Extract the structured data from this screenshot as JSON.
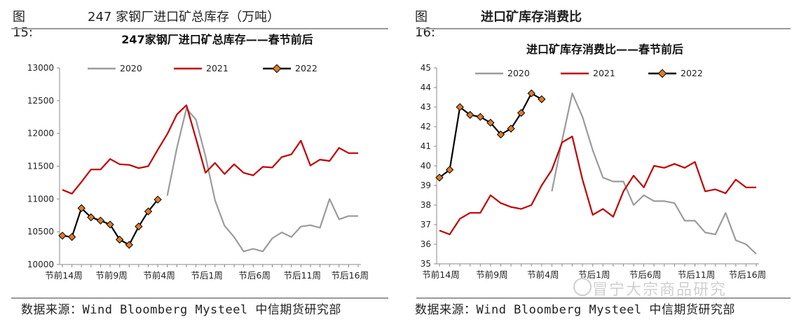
{
  "panels": [
    {
      "fig_num": "图 15:",
      "fig_title": "247 家钢厂进口矿总库存（万吨）",
      "source": "数据来源：Wind Bloomberg Mysteel 中信期货研究部"
    },
    {
      "fig_num": "图 16:",
      "fig_title": "进口矿库存消费比",
      "source": "数据来源：Wind Bloomberg Mysteel 中信期货研究部"
    }
  ],
  "watermark": "冒宁大宗商品研究",
  "colors": {
    "s2020": "#9b9b9b",
    "s2021": "#c00000",
    "s2022": "#000000",
    "marker": "#e07b28"
  },
  "chart_data": [
    {
      "type": "line",
      "title": "247家钢厂进口矿总库存——春节前后",
      "xlabel": "",
      "ylabel": "",
      "ylim": [
        10000,
        13000
      ],
      "yticks": [
        "13000",
        "12500",
        "12000",
        "11500",
        "11000",
        "10500",
        "10000"
      ],
      "xticks": [
        "节前14周",
        "节前9周",
        "节前4周",
        "节后1周",
        "节后6周",
        "节后11周",
        "节后16周"
      ],
      "x_count": 32,
      "legend": "top",
      "series": [
        {
          "name": "2020",
          "x_start": 11,
          "values": [
            11050,
            11780,
            12380,
            12210,
            11650,
            10980,
            10590,
            10420,
            10200,
            10240,
            10200,
            10400,
            10490,
            10420,
            10580,
            10600,
            10560,
            11000,
            10690,
            10740,
            10740
          ]
        },
        {
          "name": "2021",
          "x_start": 0,
          "values": [
            11140,
            11080,
            11260,
            11450,
            11450,
            11610,
            11530,
            11520,
            11470,
            11500,
            11750,
            11990,
            12290,
            12430,
            11920,
            11400,
            11550,
            11380,
            11530,
            11400,
            11360,
            11490,
            11480,
            11640,
            11680,
            11890,
            11510,
            11600,
            11580,
            11780,
            11700,
            11700
          ]
        },
        {
          "name": "2022",
          "x_start": 0,
          "markers": true,
          "values": [
            10440,
            10420,
            10860,
            10720,
            10670,
            10610,
            10380,
            10300,
            10580,
            10810,
            10990
          ]
        }
      ]
    },
    {
      "type": "line",
      "title": "进口矿库存消费比——春节前后",
      "xlabel": "",
      "ylabel": "",
      "ylim": [
        35,
        45
      ],
      "yticks": [
        "45",
        "44",
        "43",
        "42",
        "41",
        "40",
        "39",
        "38",
        "37",
        "36",
        "35"
      ],
      "xticks": [
        "节前14周",
        "节前9周",
        "节前4周",
        "节后1周",
        "节后6周",
        "节后11周",
        "节后16周"
      ],
      "x_count": 32,
      "legend": "top",
      "series": [
        {
          "name": "2020",
          "x_start": 11,
          "values": [
            38.7,
            41.3,
            43.7,
            42.5,
            40.8,
            39.4,
            39.2,
            39.2,
            38.0,
            38.5,
            38.2,
            38.2,
            38.1,
            37.2,
            37.2,
            36.6,
            36.5,
            37.6,
            36.2,
            36.0,
            35.5
          ]
        },
        {
          "name": "2021",
          "x_start": 0,
          "values": [
            36.7,
            36.5,
            37.3,
            37.6,
            37.6,
            38.5,
            38.1,
            37.9,
            37.8,
            38.0,
            39.0,
            39.8,
            41.2,
            41.5,
            39.3,
            37.5,
            37.8,
            37.4,
            38.7,
            39.5,
            38.9,
            40.0,
            39.9,
            40.1,
            39.9,
            40.2,
            38.7,
            38.8,
            38.6,
            39.3,
            38.9,
            38.9
          ]
        },
        {
          "name": "2022",
          "x_start": 0,
          "markers": true,
          "values": [
            39.4,
            39.8,
            43.0,
            42.6,
            42.5,
            42.2,
            41.6,
            41.9,
            42.7,
            43.7,
            43.4
          ]
        }
      ]
    }
  ]
}
